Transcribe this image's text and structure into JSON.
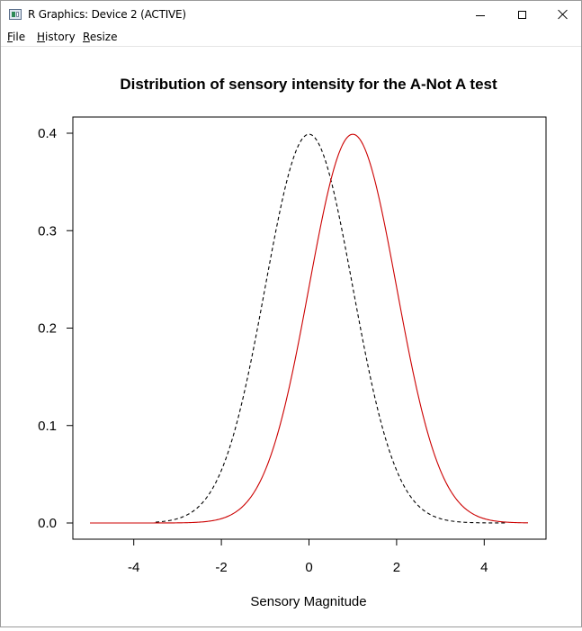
{
  "window": {
    "title": "R Graphics: Device 2 (ACTIVE)",
    "controls": [
      "minimize",
      "maximize",
      "close"
    ]
  },
  "menu": [
    {
      "mnemonic": "F",
      "rest": "ile"
    },
    {
      "mnemonic": "H",
      "rest": "istory"
    },
    {
      "mnemonic": "R",
      "rest": "esize"
    }
  ],
  "chart_data": {
    "type": "line",
    "title": "Distribution of sensory intensity for the A-Not A test",
    "xlabel": "Sensory Magnitude",
    "ylabel": "",
    "xlim": [
      -5,
      5
    ],
    "ylim": [
      0,
      0.4
    ],
    "xticks": [
      "-4",
      "-2",
      "0",
      "2",
      "4"
    ],
    "yticks": [
      "0.0",
      "0.1",
      "0.2",
      "0.3",
      "0.4"
    ],
    "grid": false,
    "legend": "none",
    "series": [
      {
        "style": "dashed",
        "color": "#000000",
        "distribution": "normal",
        "mean": 0,
        "sd": 1,
        "x_from": -3.5,
        "x_to": 4.5
      },
      {
        "style": "solid",
        "color": "#cc0000",
        "distribution": "normal",
        "mean": 1,
        "sd": 1,
        "x_from": -5,
        "x_to": 5
      }
    ]
  }
}
